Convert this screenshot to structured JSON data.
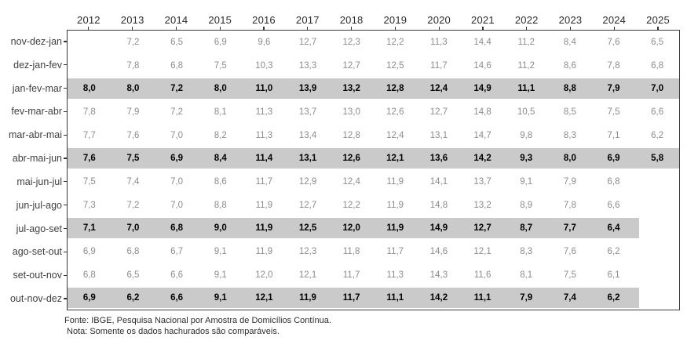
{
  "chart_data": {
    "type": "table",
    "title": "",
    "columns": [
      "2012",
      "2013",
      "2014",
      "2015",
      "2016",
      "2017",
      "2018",
      "2019",
      "2020",
      "2021",
      "2022",
      "2023",
      "2024",
      "2025"
    ],
    "row_axis": "moving-quarter",
    "value_format": "one decimal, comma as decimal separator",
    "legend": "none",
    "highlight_meaning": "gray hatched rows are the comparable standard quarters",
    "series": [
      {
        "name": "nov-dez-jan",
        "highlight": false,
        "band": null,
        "values": [
          null,
          7.2,
          6.5,
          6.9,
          9.6,
          12.7,
          12.3,
          12.2,
          11.3,
          14.4,
          11.2,
          8.4,
          7.6,
          6.5
        ]
      },
      {
        "name": "dez-jan-fev",
        "highlight": false,
        "band": null,
        "values": [
          null,
          7.8,
          6.8,
          7.5,
          10.3,
          13.3,
          12.7,
          12.5,
          11.7,
          14.6,
          11.2,
          8.6,
          7.8,
          6.8
        ]
      },
      {
        "name": "jan-fev-mar",
        "highlight": true,
        "band": "full",
        "values": [
          8.0,
          8.0,
          7.2,
          8.0,
          11.0,
          13.9,
          13.2,
          12.8,
          12.4,
          14.9,
          11.1,
          8.8,
          7.9,
          7.0
        ]
      },
      {
        "name": "fev-mar-abr",
        "highlight": false,
        "band": null,
        "values": [
          7.8,
          7.9,
          7.2,
          8.1,
          11.3,
          13.7,
          13.0,
          12.6,
          12.7,
          14.8,
          10.5,
          8.5,
          7.5,
          6.6
        ]
      },
      {
        "name": "mar-abr-mai",
        "highlight": false,
        "band": null,
        "values": [
          7.7,
          7.6,
          7.0,
          8.2,
          11.3,
          13.4,
          12.8,
          12.4,
          13.1,
          14.7,
          9.8,
          8.3,
          7.1,
          6.2
        ]
      },
      {
        "name": "abr-mai-jun",
        "highlight": true,
        "band": "full",
        "values": [
          7.6,
          7.5,
          6.9,
          8.4,
          11.4,
          13.1,
          12.6,
          12.1,
          13.6,
          14.2,
          9.3,
          8.0,
          6.9,
          5.8
        ]
      },
      {
        "name": "mai-jun-jul",
        "highlight": false,
        "band": null,
        "values": [
          7.5,
          7.4,
          7.0,
          8.6,
          11.7,
          12.9,
          12.4,
          11.9,
          14.1,
          13.7,
          9.1,
          7.9,
          6.8,
          null
        ]
      },
      {
        "name": "jun-jul-ago",
        "highlight": false,
        "band": null,
        "values": [
          7.3,
          7.2,
          7.0,
          8.8,
          11.9,
          12.7,
          12.2,
          11.9,
          14.8,
          13.2,
          8.9,
          7.8,
          6.6,
          null
        ]
      },
      {
        "name": "jul-ago-set",
        "highlight": true,
        "band": "partial",
        "values": [
          7.1,
          7.0,
          6.8,
          9.0,
          11.9,
          12.5,
          12.0,
          11.9,
          14.9,
          12.7,
          8.7,
          7.7,
          6.4,
          null
        ]
      },
      {
        "name": "ago-set-out",
        "highlight": false,
        "band": null,
        "values": [
          6.9,
          6.8,
          6.7,
          9.1,
          11.9,
          12.3,
          11.8,
          11.7,
          14.6,
          12.1,
          8.3,
          7.6,
          6.2,
          null
        ]
      },
      {
        "name": "set-out-nov",
        "highlight": false,
        "band": null,
        "values": [
          6.8,
          6.5,
          6.6,
          9.1,
          12.0,
          12.1,
          11.7,
          11.3,
          14.3,
          11.6,
          8.1,
          7.5,
          6.1,
          null
        ]
      },
      {
        "name": "out-nov-dez",
        "highlight": true,
        "band": "partial",
        "values": [
          6.9,
          6.2,
          6.6,
          9.1,
          12.1,
          11.9,
          11.7,
          11.1,
          14.2,
          11.1,
          7.9,
          7.4,
          6.2,
          null
        ]
      }
    ]
  },
  "footer": {
    "source": "Fonte: IBGE, Pesquisa Nacional por Amostra de Domicílios Contínua.",
    "note": "Nota: Somente os dados hachurados são comparáveis."
  },
  "colors": {
    "band": "#cacaca",
    "grid": "#3a3a3a",
    "header-text": "#2b2b2b",
    "label-text": "#3f3f3f",
    "value-text": "#8c8c8c",
    "value-bold-text": "#000000",
    "tick": "#333333",
    "footer-text": "#2e2e2e"
  }
}
